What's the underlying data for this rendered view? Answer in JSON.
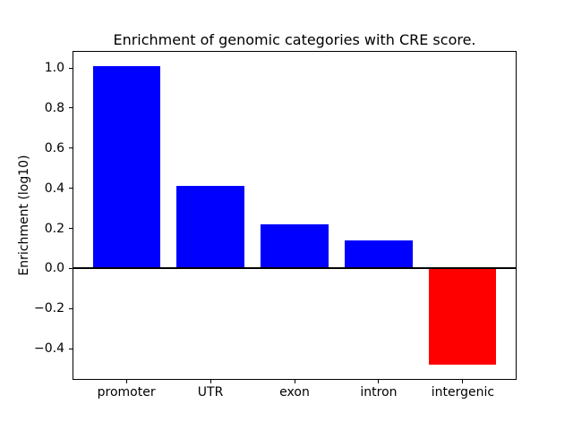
{
  "chart_data": {
    "type": "bar",
    "title": "Enrichment of genomic categories with CRE score.",
    "xlabel": "",
    "ylabel": "Enrichment (log10)",
    "categories": [
      "promoter",
      "UTR",
      "exon",
      "intron",
      "intergenic"
    ],
    "values": [
      1.01,
      0.41,
      0.22,
      0.14,
      -0.48
    ],
    "bar_colors": [
      "#0000FF",
      "#0000FF",
      "#0000FF",
      "#0000FF",
      "#FF0000"
    ],
    "positive_color": "#0000FF",
    "negative_color": "#FF0000",
    "ylim": [
      -0.555,
      1.085
    ],
    "yticks": [
      {
        "value": 1.0,
        "label": "1.0"
      },
      {
        "value": 0.8,
        "label": "0.8"
      },
      {
        "value": 0.6,
        "label": "0.6"
      },
      {
        "value": 0.4,
        "label": "0.4"
      },
      {
        "value": 0.2,
        "label": "0.2"
      },
      {
        "value": 0.0,
        "label": "0.0"
      },
      {
        "value": -0.2,
        "label": "−0.2"
      },
      {
        "value": -0.4,
        "label": "−0.4"
      }
    ],
    "bar_width_fraction": 0.8,
    "x_margin": 0.05,
    "grid": false,
    "legend": false,
    "zero_line": true
  }
}
